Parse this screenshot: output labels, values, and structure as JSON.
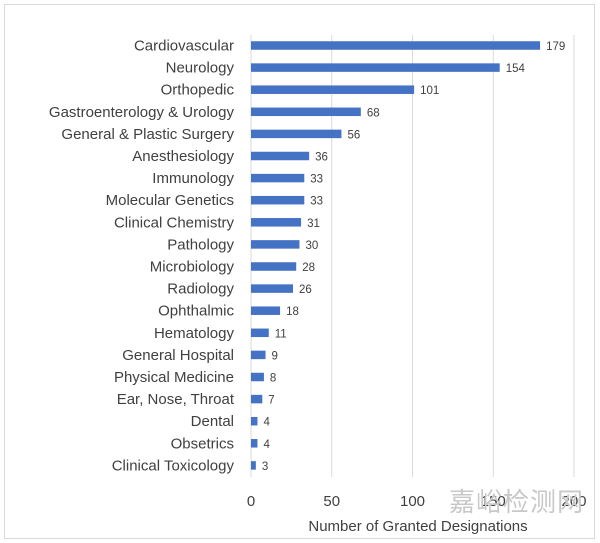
{
  "chart_data": {
    "type": "bar",
    "orientation": "horizontal",
    "categories": [
      "Cardiovascular",
      "Neurology",
      "Orthopedic",
      "Gastroenterology & Urology",
      "General & Plastic Surgery",
      "Anesthesiology",
      "Immunology",
      "Molecular Genetics",
      "Clinical Chemistry",
      "Pathology",
      "Microbiology",
      "Radiology",
      "Ophthalmic",
      "Hematology",
      "General Hospital",
      "Physical Medicine",
      "Ear, Nose, Throat",
      "Dental",
      "Obsetrics",
      "Clinical Toxicology"
    ],
    "values": [
      179,
      154,
      101,
      68,
      56,
      36,
      33,
      33,
      31,
      30,
      28,
      26,
      18,
      11,
      9,
      8,
      7,
      4,
      4,
      3
    ],
    "xlabel": "Number of Granted Designations",
    "xlim": [
      0,
      200
    ],
    "xticks": [
      0,
      50,
      100,
      150,
      200
    ],
    "grid": "vertical",
    "bar_color": "#4472c4",
    "data_labels": true
  },
  "watermark": "嘉峪检测网"
}
